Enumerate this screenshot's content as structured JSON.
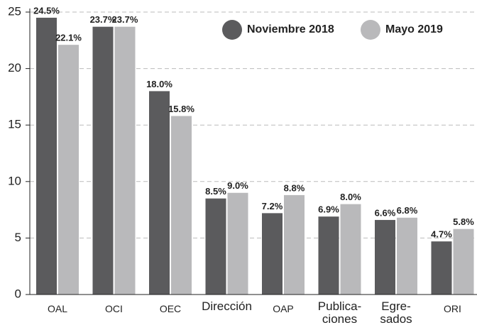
{
  "chart_data": {
    "type": "bar",
    "categories": [
      "OAL",
      "OCI",
      "OEC",
      "Dirección",
      "OAP",
      "Publica-\nciones",
      "Egre-\nsados",
      "ORI"
    ],
    "series": [
      {
        "name": "Noviembre 2018",
        "color": "#5b5b5d",
        "values": [
          24.5,
          23.7,
          18.0,
          8.5,
          7.2,
          6.9,
          6.6,
          4.7
        ],
        "value_labels": [
          "24.5%",
          "23.7%",
          "18.0%",
          "8.5%",
          "7.2%",
          "6.9%",
          "6.6%",
          "4.7%"
        ]
      },
      {
        "name": "Mayo 2019",
        "color": "#b9b9bb",
        "values": [
          22.1,
          23.7,
          15.8,
          9.0,
          8.8,
          8.0,
          6.8,
          5.8
        ],
        "value_labels": [
          "22.1%",
          "23.7%",
          "15.8%",
          "9.0%",
          "8.8%",
          "8.0%",
          "6.8%",
          "5.8%"
        ]
      }
    ],
    "ylim": [
      0,
      25
    ],
    "yticks": [
      0,
      5,
      10,
      15,
      20,
      25
    ],
    "grid": true,
    "legend": "top-right"
  }
}
